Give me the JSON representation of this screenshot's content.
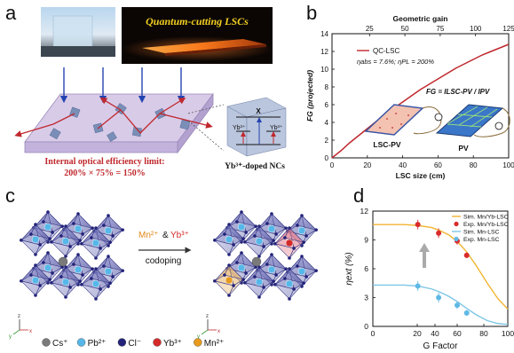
{
  "panel_a": {
    "label": "a",
    "photo_title": "Quantum-cutting LSCs",
    "efficiency_line1": "Internal optical efficiency limit:",
    "efficiency_line2": "200% × 75% = 150%",
    "nc_label": "Yb³⁺-doped NCs",
    "level_left": "Yb³⁺",
    "level_right": "Yb³⁺",
    "level_x": "X"
  },
  "panel_b": {
    "label": "b",
    "legend_series": "QC-LSC",
    "legend_params": "ηabs = 7.6%; ηPL = 200%",
    "formula": "FG = ILSC-PV / IPV",
    "inset_left": "LSC-PV",
    "inset_right": "PV"
  },
  "panel_c": {
    "label": "c",
    "mn": "Mn²⁺",
    "amp": "&",
    "yb": "Yb³⁺",
    "codoping": "codoping",
    "axis_z": "z",
    "axis_y": "y",
    "axis_x": "x",
    "legend": [
      {
        "label": "Cs⁺",
        "color": "#7a7a7a"
      },
      {
        "label": "Pb²⁺",
        "color": "#56b7e8"
      },
      {
        "label": "Cl⁻",
        "color": "#23237a"
      },
      {
        "label": "Yb³⁺",
        "color": "#d42a2a"
      },
      {
        "label": "Mn²⁺",
        "color": "#e79a1e"
      }
    ]
  },
  "panel_d": {
    "label": "d"
  },
  "chart_data": [
    {
      "type": "line",
      "title": "",
      "xlabel": "LSC size (cm)",
      "ylabel": "FG (projected)",
      "top_xlabel": "Geometric gain",
      "xlim": [
        0,
        100
      ],
      "ylim": [
        0,
        14
      ],
      "xticks": [
        0,
        20,
        40,
        60,
        80,
        100
      ],
      "yticks": [
        0,
        2,
        4,
        6,
        8,
        10,
        12,
        14
      ],
      "top_ticks": [
        {
          "label": "25",
          "x": 21.25
        },
        {
          "label": "50",
          "x": 41.25
        },
        {
          "label": "75",
          "x": 61.25
        },
        {
          "label": "100",
          "x": 81.25
        },
        {
          "label": "125",
          "x": 100
        }
      ],
      "series": [
        {
          "name": "QC-LSC",
          "color": "#c0282d",
          "x": [
            0,
            5,
            10,
            15,
            20,
            25,
            30,
            35,
            40,
            45,
            50,
            55,
            60,
            65,
            70,
            75,
            80,
            85,
            90,
            95,
            100
          ],
          "y": [
            0,
            0.8,
            1.7,
            2.5,
            3.3,
            4.1,
            4.9,
            5.6,
            6.3,
            7.0,
            7.7,
            8.3,
            8.9,
            9.5,
            10.1,
            10.6,
            11.1,
            11.6,
            12.0,
            12.4,
            12.8
          ]
        }
      ]
    },
    {
      "type": "scatter",
      "title": "",
      "xlabel": "G Factor",
      "ylabel": "ηext (%)",
      "xscale": "log",
      "xlim": [
        0.1,
        100
      ],
      "ylim": [
        0,
        12
      ],
      "xticks": [
        {
          "label": "0",
          "value": 0.1
        },
        {
          "label": "20",
          "value": 20
        },
        {
          "label": "40",
          "value": 40
        },
        {
          "label": "60",
          "value": 60
        },
        {
          "label": "80",
          "value": 80
        },
        {
          "label": "100",
          "value": 100
        }
      ],
      "yticks": [
        0,
        3,
        6,
        9,
        12
      ],
      "legend_position": "top-right",
      "curves": [
        {
          "name": "Sim. Mn/Yb-LSC",
          "color": "#f2b431",
          "x": [
            0.1,
            0.5,
            1,
            2,
            3,
            5,
            8,
            12,
            20,
            35,
            60,
            100
          ],
          "y": [
            10.6,
            10.6,
            10.5,
            10.3,
            10.0,
            9.5,
            8.7,
            7.8,
            6.3,
            4.5,
            2.9,
            1.8
          ]
        },
        {
          "name": "Sim. Mn-LSC",
          "color": "#7ec6e6",
          "x": [
            0.1,
            0.5,
            1,
            2,
            3,
            5,
            8,
            12,
            20,
            35,
            60,
            100
          ],
          "y": [
            4.3,
            4.3,
            4.2,
            3.9,
            3.6,
            3.1,
            2.5,
            1.9,
            1.2,
            0.6,
            0.3,
            0.2
          ]
        }
      ],
      "points": [
        {
          "name": "Exp. Mn/Yb-LSC",
          "color": "#d92b2b",
          "x": [
            1.0,
            2.9,
            7.5,
            12.2
          ],
          "y": [
            10.6,
            9.7,
            8.9,
            7.4
          ],
          "err": [
            0.5,
            0.5,
            0.4,
            0.3
          ]
        },
        {
          "name": "Exp. Mn-LSC",
          "color": "#5fb9e6",
          "x": [
            1.0,
            2.9,
            7.5,
            12.2
          ],
          "y": [
            4.2,
            3.0,
            2.2,
            1.4
          ],
          "err": [
            0.5,
            0.5,
            0.4,
            0.3
          ]
        }
      ]
    }
  ]
}
